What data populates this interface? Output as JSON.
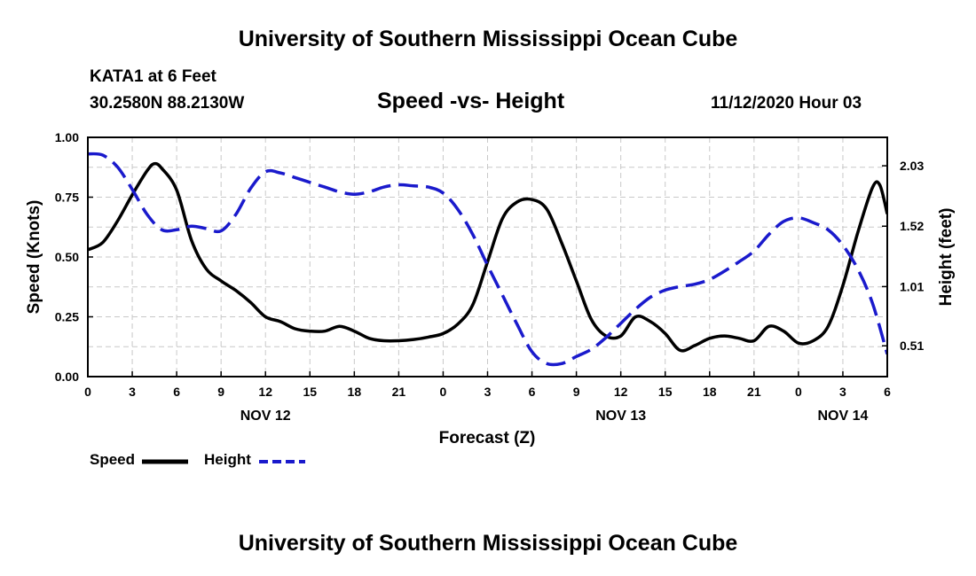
{
  "header": {
    "title": "University of Southern Mississippi Ocean Cube",
    "station": "KATA1 at 6 Feet",
    "coords": "30.2580N 88.2130W",
    "datetime": "11/12/2020 Hour 03"
  },
  "footer": {
    "title": "University of Southern Mississippi Ocean Cube"
  },
  "legend": {
    "speed_label": "Speed",
    "height_label": "Height"
  },
  "colors": {
    "speed": "#000000",
    "height": "#1a1acc",
    "grid": "#c8c8c8"
  },
  "chart_data": {
    "type": "line",
    "title": "Speed -vs- Height",
    "xlabel": "Forecast (Z)",
    "ylabel": "Speed (Knots)",
    "y2label": "Height (feet)",
    "xlim": [
      0,
      54
    ],
    "ylim": [
      0,
      1
    ],
    "y2lim": [
      0.25,
      2.27
    ],
    "x_ticks": [
      0,
      3,
      6,
      9,
      12,
      15,
      18,
      21,
      24,
      27,
      30,
      33,
      36,
      39,
      42,
      45,
      48,
      51,
      54
    ],
    "x_tick_labels": [
      "0",
      "3",
      "6",
      "9",
      "12",
      "15",
      "18",
      "21",
      "0",
      "3",
      "6",
      "9",
      "12",
      "15",
      "18",
      "21",
      "0",
      "3",
      "6"
    ],
    "y_ticks": [
      0,
      0.25,
      0.5,
      0.75,
      1.0
    ],
    "y_tick_labels": [
      "0.00",
      "0.25",
      "0.50",
      "0.75",
      "1.00"
    ],
    "y2_ticks": [
      0.51,
      1.01,
      1.52,
      2.03
    ],
    "y2_tick_labels": [
      "0.51",
      "1.01",
      "1.52",
      "2.03"
    ],
    "day_labels": [
      {
        "x": 12,
        "label": "NOV 12"
      },
      {
        "x": 36,
        "label": "NOV 13"
      },
      {
        "x": 51,
        "label": "NOV 14"
      }
    ],
    "grid": true,
    "legend_position": "bottom-left",
    "series": [
      {
        "name": "Speed",
        "axis": "left",
        "style": "solid",
        "x": [
          0,
          1,
          2,
          3,
          4,
          4.5,
          5,
          6,
          7,
          8,
          9,
          10,
          11,
          12,
          13,
          14,
          15,
          16,
          17,
          18,
          19,
          20,
          21,
          22,
          23,
          24,
          25,
          26,
          27,
          28,
          29,
          30,
          31,
          32,
          33,
          34,
          35,
          36,
          37,
          38,
          39,
          40,
          41,
          42,
          43,
          44,
          45,
          46,
          47,
          48,
          49,
          50,
          51,
          52,
          53,
          53.5,
          54
        ],
        "values": [
          0.53,
          0.56,
          0.65,
          0.76,
          0.86,
          0.89,
          0.87,
          0.78,
          0.57,
          0.45,
          0.4,
          0.36,
          0.31,
          0.25,
          0.23,
          0.2,
          0.19,
          0.19,
          0.21,
          0.19,
          0.16,
          0.15,
          0.15,
          0.155,
          0.165,
          0.18,
          0.22,
          0.3,
          0.48,
          0.66,
          0.73,
          0.74,
          0.7,
          0.56,
          0.4,
          0.24,
          0.17,
          0.17,
          0.25,
          0.23,
          0.18,
          0.11,
          0.13,
          0.16,
          0.17,
          0.16,
          0.15,
          0.21,
          0.19,
          0.14,
          0.15,
          0.21,
          0.38,
          0.6,
          0.79,
          0.8,
          0.68
        ]
      },
      {
        "name": "Height",
        "axis": "right",
        "style": "dashed",
        "x": [
          0,
          1,
          2,
          3,
          4,
          5,
          6,
          7,
          8,
          9,
          10,
          11,
          12,
          13,
          14,
          15,
          16,
          17,
          18,
          19,
          20,
          21,
          22,
          23,
          24,
          25,
          26,
          27,
          28,
          29,
          30,
          31,
          32,
          33,
          34,
          35,
          36,
          37,
          38,
          39,
          40,
          41,
          42,
          43,
          44,
          45,
          46,
          47,
          48,
          49,
          50,
          51,
          52,
          53,
          54
        ],
        "values": [
          2.13,
          2.12,
          2.02,
          1.83,
          1.62,
          1.49,
          1.49,
          1.52,
          1.5,
          1.48,
          1.62,
          1.84,
          1.98,
          1.97,
          1.93,
          1.89,
          1.85,
          1.81,
          1.79,
          1.81,
          1.85,
          1.87,
          1.86,
          1.85,
          1.8,
          1.66,
          1.45,
          1.19,
          0.94,
          0.69,
          0.46,
          0.36,
          0.36,
          0.42,
          0.48,
          0.58,
          0.7,
          0.82,
          0.92,
          0.98,
          1.01,
          1.03,
          1.07,
          1.14,
          1.22,
          1.31,
          1.45,
          1.56,
          1.59,
          1.55,
          1.49,
          1.36,
          1.16,
          0.87,
          0.44
        ]
      }
    ]
  }
}
